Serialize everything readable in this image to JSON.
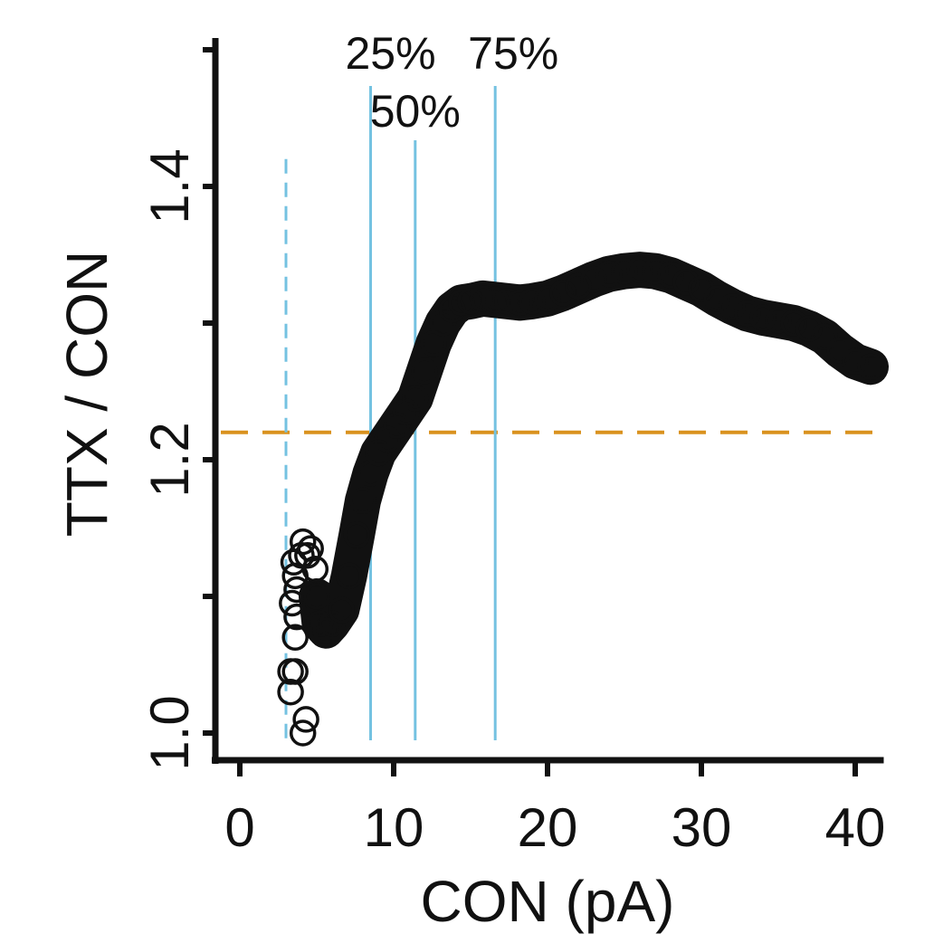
{
  "chart_data": {
    "type": "scatter",
    "title": "",
    "xlabel": "CON (pA)",
    "ylabel": "TTX / CON",
    "xlim": [
      0,
      41.5
    ],
    "ylim": [
      1.0,
      1.53
    ],
    "xticks": [
      0,
      10,
      20,
      30,
      40
    ],
    "yticks": [
      1.0,
      1.1,
      1.2,
      1.3,
      1.4,
      1.5
    ],
    "ytick_labels": [
      {
        "value": 1.0,
        "label": "1.0"
      },
      {
        "value": 1.2,
        "label": "1.2"
      },
      {
        "value": 1.4,
        "label": "1.4"
      }
    ],
    "grid": false,
    "reference_lines": {
      "horizontal": {
        "y": 1.22,
        "style": "dashed",
        "color": "#d9921e"
      },
      "vertical_dashed": {
        "x": 3.0,
        "y_top": 1.42,
        "style": "dashed",
        "color": "#74c2e1"
      },
      "percentiles": [
        {
          "label": "25%",
          "x": 8.5
        },
        {
          "label": "50%",
          "x": 11.4
        },
        {
          "label": "75%",
          "x": 16.6
        }
      ],
      "percentile_color": "#74c2e1"
    },
    "series": [
      {
        "marker": "circle-open",
        "color": "#111111",
        "points": [
          [
            3.3,
            1.03
          ],
          [
            3.3,
            1.045
          ],
          [
            4.1,
            1.0
          ],
          [
            4.3,
            1.01
          ],
          [
            3.6,
            1.045
          ],
          [
            3.6,
            1.07
          ],
          [
            3.7,
            1.085
          ],
          [
            3.4,
            1.095
          ],
          [
            3.7,
            1.105
          ],
          [
            3.6,
            1.115
          ],
          [
            3.5,
            1.125
          ],
          [
            4.0,
            1.13
          ],
          [
            4.1,
            1.14
          ],
          [
            4.4,
            1.13
          ],
          [
            4.6,
            1.135
          ],
          [
            4.9,
            1.12
          ],
          [
            5.0,
            1.1
          ],
          [
            5.2,
            1.08
          ],
          [
            5.6,
            1.075
          ],
          [
            6.0,
            1.08
          ],
          [
            6.6,
            1.09
          ],
          [
            7.1,
            1.115
          ],
          [
            7.6,
            1.145
          ],
          [
            8.0,
            1.17
          ],
          [
            8.5,
            1.19
          ],
          [
            9.0,
            1.205
          ],
          [
            9.6,
            1.215
          ],
          [
            10.2,
            1.225
          ],
          [
            10.8,
            1.235
          ],
          [
            11.4,
            1.245
          ],
          [
            12.0,
            1.265
          ],
          [
            12.6,
            1.285
          ],
          [
            13.2,
            1.3
          ],
          [
            13.8,
            1.31
          ],
          [
            14.4,
            1.315
          ],
          [
            15.0,
            1.316
          ],
          [
            15.8,
            1.318
          ],
          [
            16.6,
            1.317
          ],
          [
            17.4,
            1.316
          ],
          [
            18.2,
            1.315
          ],
          [
            19.0,
            1.316
          ],
          [
            20.0,
            1.318
          ],
          [
            21.0,
            1.322
          ],
          [
            22.0,
            1.327
          ],
          [
            23.0,
            1.332
          ],
          [
            24.0,
            1.336
          ],
          [
            25.0,
            1.338
          ],
          [
            26.0,
            1.339
          ],
          [
            27.0,
            1.338
          ],
          [
            28.0,
            1.335
          ],
          [
            29.0,
            1.33
          ],
          [
            30.0,
            1.325
          ],
          [
            31.0,
            1.318
          ],
          [
            32.0,
            1.312
          ],
          [
            33.0,
            1.307
          ],
          [
            34.0,
            1.304
          ],
          [
            35.0,
            1.302
          ],
          [
            36.0,
            1.3
          ],
          [
            37.0,
            1.296
          ],
          [
            38.0,
            1.29
          ],
          [
            39.0,
            1.28
          ],
          [
            40.0,
            1.272
          ],
          [
            41.0,
            1.268
          ]
        ]
      }
    ]
  }
}
